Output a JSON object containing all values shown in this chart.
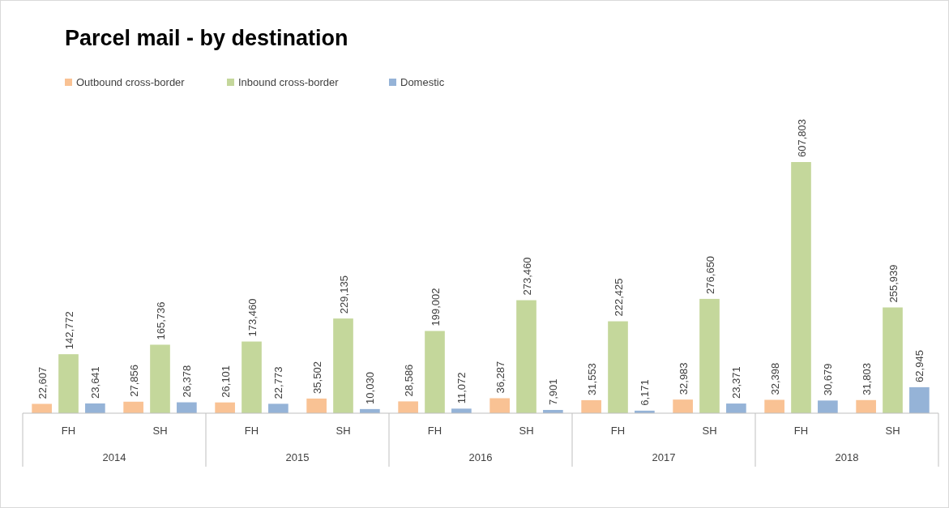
{
  "chart_data": {
    "type": "bar",
    "title": "Parcel mail - by destination",
    "categories": [
      "FH",
      "SH",
      "FH",
      "SH",
      "FH",
      "SH",
      "FH",
      "SH",
      "FH",
      "SH"
    ],
    "annotations": [
      "2014",
      "2015",
      "2016",
      "2017",
      "2018"
    ],
    "series": [
      {
        "name": "Outbound cross-border",
        "color": "#f9c294",
        "values": [
          22607,
          27856,
          26101,
          35502,
          28586,
          36287,
          31553,
          32983,
          32398,
          31803
        ],
        "value_labels": [
          "22,607",
          "27,856",
          "26,101",
          "35,502",
          "28,586",
          "36,287",
          "31,553",
          "32,983",
          "32,398",
          "31,803"
        ]
      },
      {
        "name": "Inbound cross-border",
        "color": "#c4d79b",
        "values": [
          142772,
          165736,
          173460,
          229135,
          199002,
          273460,
          222425,
          276650,
          607803,
          255939
        ],
        "value_labels": [
          "142,772",
          "165,736",
          "173,460",
          "229,135",
          "199,002",
          "273,460",
          "222,425",
          "276,650",
          "607,803",
          "255,939"
        ]
      },
      {
        "name": "Domestic",
        "color": "#95b3d7",
        "values": [
          23641,
          26378,
          22773,
          10030,
          11072,
          7901,
          6171,
          23371,
          30679,
          62945
        ],
        "value_labels": [
          "23,641",
          "26,378",
          "22,773",
          "10,030",
          "11,072",
          "7,901",
          "6,171",
          "23,371",
          "30,679",
          "62,945"
        ]
      }
    ],
    "legend": "top left"
  }
}
